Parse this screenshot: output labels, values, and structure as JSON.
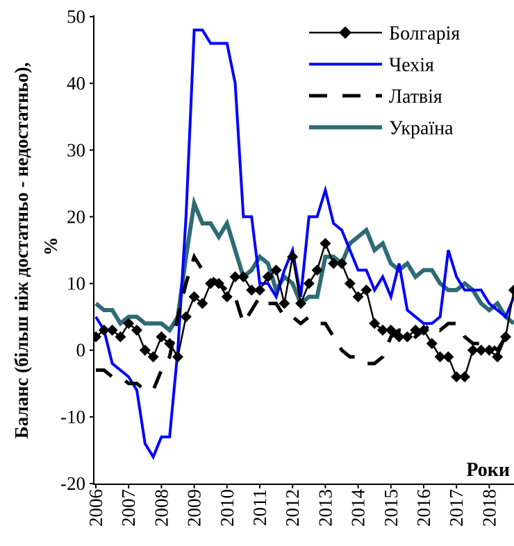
{
  "chart_data": {
    "type": "line",
    "y_label": "Баланс (більш ніж достатньо - недостатньо),",
    "y_label_unit": "%",
    "x_label": "Роки",
    "categories": [
      "2006",
      null,
      null,
      null,
      "2007",
      null,
      null,
      null,
      "2008",
      null,
      null,
      null,
      "2009",
      null,
      null,
      null,
      "2010",
      null,
      null,
      null,
      "2011",
      null,
      null,
      null,
      "2012",
      null,
      null,
      null,
      "2013",
      null,
      null,
      null,
      "2014",
      null,
      null,
      null,
      "2015",
      null,
      null,
      null,
      "2016",
      null,
      null,
      null,
      "2017",
      null,
      null,
      null,
      "2018",
      null,
      null,
      null
    ],
    "ylim": [
      -20,
      50
    ],
    "yticks": [
      -20,
      -10,
      0,
      10,
      20,
      30,
      40,
      50
    ],
    "legend": "upper right",
    "series": [
      {
        "name": "Болгарія",
        "color": "#000000",
        "marker": "diamond",
        "values": [
          2,
          3,
          3,
          2,
          4,
          3,
          0,
          -1,
          2,
          1,
          -1,
          5,
          8,
          7,
          10,
          10,
          8,
          11,
          11,
          9,
          9,
          11,
          12,
          7,
          14,
          7,
          10,
          12,
          16,
          13,
          13,
          10,
          8,
          9,
          4,
          3,
          3,
          2,
          2,
          3,
          3,
          1,
          -1,
          -1,
          -4,
          -4,
          0,
          0,
          0,
          -1,
          2,
          9
        ]
      },
      {
        "name": "Чехія",
        "color": "#0000ff",
        "values": [
          5,
          3,
          -2,
          -3,
          -4,
          -6,
          -14,
          -16,
          -13,
          -13,
          0,
          20,
          48,
          48,
          46,
          46,
          46,
          40,
          20,
          20,
          10,
          10,
          8,
          12,
          15,
          8,
          20,
          20,
          24,
          19,
          18,
          15,
          12,
          12,
          9,
          11,
          8,
          13,
          6,
          5,
          4,
          4,
          5,
          15,
          11,
          9,
          9,
          9,
          7,
          6,
          5,
          8
        ]
      },
      {
        "name": "Латвія",
        "color": "#000000",
        "dash": true,
        "values": [
          -3,
          -3,
          -4,
          -4,
          -5,
          -5,
          -6,
          -6,
          -3,
          -1,
          5,
          10,
          14,
          12,
          11,
          10,
          9,
          8,
          4,
          6,
          8,
          7,
          7,
          5,
          5,
          4,
          5,
          4,
          4,
          2,
          0,
          -1,
          -1,
          -2,
          -2,
          -1,
          2,
          3,
          3,
          2,
          3,
          4,
          3,
          4,
          4,
          2,
          1,
          1,
          1,
          0,
          2,
          2
        ]
      },
      {
        "name": "Україна",
        "color": "#2f6b74",
        "values": [
          7,
          6,
          6,
          4,
          5,
          5,
          4,
          4,
          4,
          3,
          5,
          14,
          22,
          19,
          19,
          17,
          19,
          15,
          11,
          12,
          14,
          13,
          9,
          11,
          10,
          7,
          8,
          8,
          14,
          14,
          13,
          16,
          17,
          18,
          15,
          16,
          13,
          12,
          13,
          11,
          12,
          12,
          10,
          9,
          9,
          10,
          9,
          7,
          6,
          7,
          5,
          4
        ]
      }
    ]
  }
}
